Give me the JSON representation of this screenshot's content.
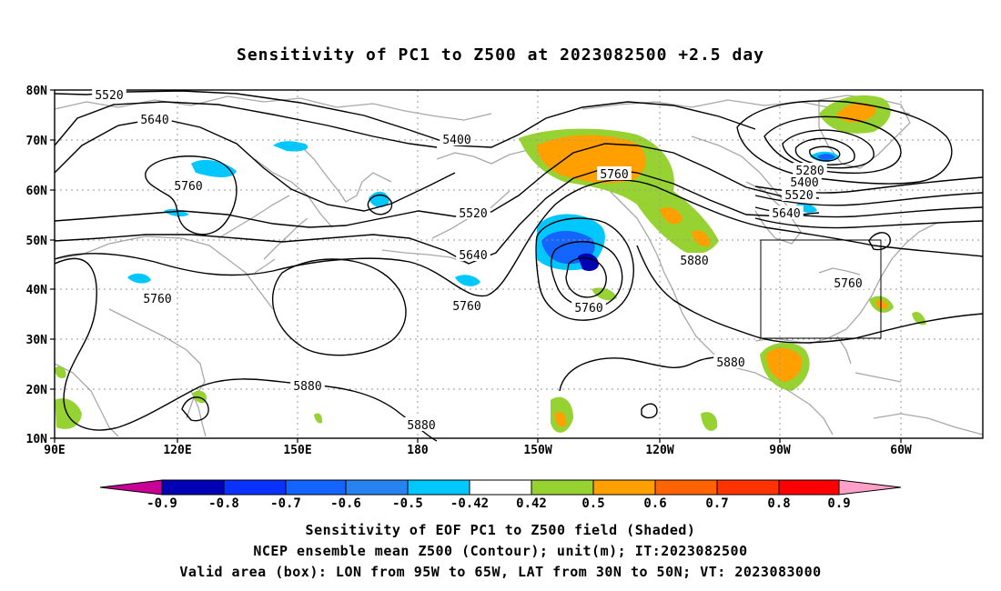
{
  "title": "Sensitivity of PC1 to Z500 at 2023082500 +2.5 day",
  "axes": {
    "lat_labels": [
      "80N",
      "70N",
      "60N",
      "50N",
      "40N",
      "30N",
      "20N",
      "10N"
    ],
    "lon_labels": [
      "90E",
      "120E",
      "150E",
      "180",
      "150W",
      "120W",
      "90W",
      "60W"
    ]
  },
  "contour_labels": [
    "5520",
    "5640",
    "5760",
    "5400",
    "5520",
    "5760",
    "5280",
    "5400",
    "5520",
    "5640",
    "5640",
    "5880",
    "5760",
    "5760",
    "5760",
    "5760",
    "5880",
    "5880",
    "5880"
  ],
  "colorbar": {
    "labels": [
      "-0.9",
      "-0.8",
      "-0.7",
      "-0.6",
      "-0.5",
      "-0.42",
      "0.42",
      "0.5",
      "0.6",
      "0.7",
      "0.8",
      "0.9"
    ],
    "colors": [
      "#0000b4",
      "#0a32ff",
      "#1464ff",
      "#2882f0",
      "#00c8ff",
      "#ffffff",
      "#96d232",
      "#ffa000",
      "#ff6400",
      "#ff3200",
      "#ff0000"
    ],
    "low_extend_color": "#c80096",
    "high_extend_color": "#ffa0c8"
  },
  "shading_colors": {
    "neg_light": "#00c8ff",
    "neg_mid": "#1464ff",
    "neg_dark": "#0000b4",
    "pos_light": "#96d232",
    "pos_mid": "#ffa000",
    "pos_high": "#ff6400"
  },
  "captions": [
    "Sensitivity of EOF PC1 to Z500 field (Shaded)",
    "NCEP ensemble mean Z500 (Contour); unit(m); IT:2023082500",
    "Valid area (box): LON from 95W to 65W, LAT from 30N to 50N; VT: 2023083000"
  ]
}
